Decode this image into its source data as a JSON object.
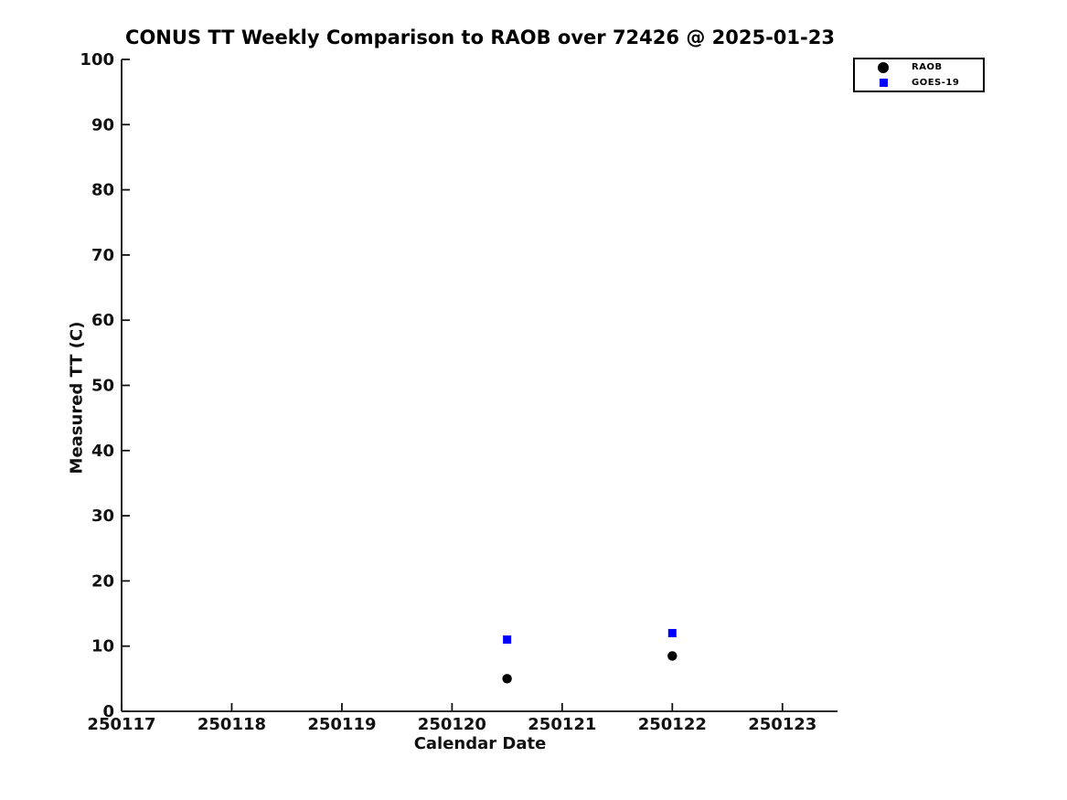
{
  "chart_data": {
    "type": "scatter",
    "title": "CONUS TT Weekly Comparison to RAOB over 72426 @ 2025-01-23",
    "xlabel": "Calendar Date",
    "ylabel": "Measured TT (C)",
    "xlim": [
      250117,
      250123.5
    ],
    "ylim": [
      0,
      100
    ],
    "x_ticks": [
      250117,
      250118,
      250119,
      250120,
      250121,
      250122,
      250123
    ],
    "y_ticks": [
      0,
      10,
      20,
      30,
      40,
      50,
      60,
      70,
      80,
      90,
      100
    ],
    "grid": false,
    "legend_position": "upper right",
    "series": [
      {
        "name": "RAOB",
        "marker": "circle",
        "color": "#000000",
        "points": [
          {
            "x": 250120.5,
            "y": 5
          },
          {
            "x": 250122,
            "y": 8.5
          }
        ]
      },
      {
        "name": "GOES-19",
        "marker": "square",
        "color": "#0000ff",
        "points": [
          {
            "x": 250120.5,
            "y": 11
          },
          {
            "x": 250122,
            "y": 12
          }
        ]
      }
    ]
  }
}
